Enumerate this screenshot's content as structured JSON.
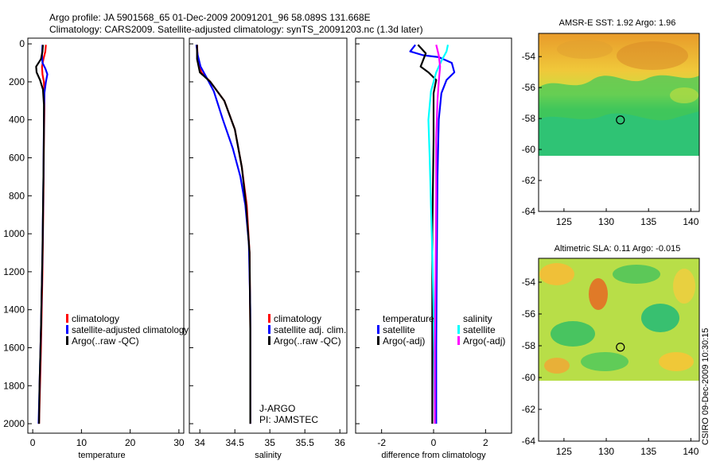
{
  "header": {
    "line1": "Argo profile: JA 5901568_65 01-Dec-2009 20091201_96 58.089S 131.668E",
    "line2": "Climatology: CARS2009. Satellite-adjusted climatology: synTS_20091203.nc  (1.3d later)"
  },
  "side_credit": "CSIRO 09-Dec-2009 10:30:15",
  "colors": {
    "climatology": "#ff0000",
    "satellite_adjusted": "#0000ff",
    "argo": "#000000",
    "sat_salinity": "#00ffff",
    "argo_salinity_adj": "#ff00ff"
  },
  "chart_data": [
    {
      "id": "temperature",
      "type": "line",
      "xlabel": "temperature",
      "xlim": [
        -1,
        31
      ],
      "ylim": [
        2050,
        -30
      ],
      "xticks": [
        0,
        10,
        20,
        30
      ],
      "yticks": [
        0,
        200,
        400,
        600,
        800,
        1000,
        1200,
        1400,
        1600,
        1800,
        2000
      ],
      "legend": [
        "climatology",
        "satellite-adjusted climatology",
        "Argo(..raw -QC)"
      ],
      "series": [
        {
          "name": "climatology",
          "color": "#ff0000",
          "points": [
            [
              2.7,
              5
            ],
            [
              2.6,
              40
            ],
            [
              2.2,
              80
            ],
            [
              1.9,
              120
            ],
            [
              2.0,
              160
            ],
            [
              2.3,
              200
            ],
            [
              2.4,
              260
            ],
            [
              2.4,
              350
            ],
            [
              2.3,
              500
            ],
            [
              2.2,
              800
            ],
            [
              2.0,
              1200
            ],
            [
              1.7,
              1600
            ],
            [
              1.3,
              2000
            ]
          ]
        },
        {
          "name": "satellite-adjusted climatology",
          "color": "#0000ff",
          "points": [
            [
              2.0,
              5
            ],
            [
              1.9,
              60
            ],
            [
              2.0,
              100
            ],
            [
              2.6,
              130
            ],
            [
              3.0,
              160
            ],
            [
              2.7,
              200
            ],
            [
              2.4,
              260
            ],
            [
              2.3,
              400
            ],
            [
              2.2,
              700
            ],
            [
              2.0,
              1100
            ],
            [
              1.7,
              1500
            ],
            [
              1.4,
              1800
            ],
            [
              1.2,
              2000
            ]
          ]
        },
        {
          "name": "Argo(..raw -QC)",
          "color": "#000000",
          "points": [
            [
              2.1,
              5
            ],
            [
              2.0,
              40
            ],
            [
              1.7,
              80
            ],
            [
              0.7,
              120
            ],
            [
              0.8,
              150
            ],
            [
              1.5,
              190
            ],
            [
              2.1,
              240
            ],
            [
              2.3,
              320
            ],
            [
              2.3,
              450
            ],
            [
              2.2,
              700
            ],
            [
              2.0,
              1100
            ],
            [
              1.7,
              1500
            ],
            [
              1.4,
              1800
            ],
            [
              1.3,
              2000
            ]
          ]
        }
      ]
    },
    {
      "id": "salinity",
      "type": "line",
      "xlabel": "salinity",
      "xlim": [
        33.85,
        36.1
      ],
      "ylim": [
        2050,
        -30
      ],
      "xticks": [
        34,
        34.5,
        35,
        35.5,
        36
      ],
      "xticklabels": [
        "34",
        "34.5",
        "35",
        "35.5",
        "36"
      ],
      "legend": [
        "climatology",
        "satellite adj. clim.",
        "Argo(..raw -QC)"
      ],
      "annotation": [
        "J-ARGO",
        "PI: JAMSTEC"
      ],
      "series": [
        {
          "name": "climatology",
          "color": "#ff0000",
          "points": [
            [
              33.96,
              5
            ],
            [
              33.97,
              80
            ],
            [
              34.02,
              150
            ],
            [
              34.15,
              200
            ],
            [
              34.35,
              300
            ],
            [
              34.5,
              450
            ],
            [
              34.6,
              650
            ],
            [
              34.67,
              850
            ],
            [
              34.71,
              1100
            ],
            [
              34.72,
              1500
            ],
            [
              34.72,
              2000
            ]
          ]
        },
        {
          "name": "satellite adj. clim.",
          "color": "#0000ff",
          "points": [
            [
              33.95,
              5
            ],
            [
              33.97,
              60
            ],
            [
              34.01,
              120
            ],
            [
              34.1,
              180
            ],
            [
              34.2,
              250
            ],
            [
              34.33,
              400
            ],
            [
              34.47,
              550
            ],
            [
              34.58,
              700
            ],
            [
              34.65,
              850
            ],
            [
              34.7,
              1050
            ],
            [
              34.72,
              1400
            ],
            [
              34.72,
              2000
            ]
          ]
        },
        {
          "name": "Argo(..raw -QC)",
          "color": "#000000",
          "points": [
            [
              33.96,
              5
            ],
            [
              33.96,
              80
            ],
            [
              34.0,
              150
            ],
            [
              34.15,
              200
            ],
            [
              34.35,
              300
            ],
            [
              34.5,
              450
            ],
            [
              34.6,
              650
            ],
            [
              34.66,
              850
            ],
            [
              34.71,
              1100
            ],
            [
              34.72,
              1500
            ],
            [
              34.72,
              2000
            ]
          ]
        }
      ]
    },
    {
      "id": "difference",
      "type": "line",
      "xlabel": "difference from climatology",
      "xlim": [
        -3,
        3
      ],
      "ylim": [
        2050,
        -30
      ],
      "xticks": [
        -2,
        0,
        2
      ],
      "legend_headers": [
        "temperature",
        "salinity"
      ],
      "legend": [
        "satellite",
        "Argo(-adj)",
        "satellite",
        "Argo(-adj)"
      ],
      "series": [
        {
          "name": "temperature satellite",
          "color": "#0000ff",
          "points": [
            [
              -0.7,
              5
            ],
            [
              -0.9,
              40
            ],
            [
              -0.4,
              60
            ],
            [
              0.2,
              70
            ],
            [
              0.7,
              100
            ],
            [
              0.8,
              150
            ],
            [
              0.5,
              190
            ],
            [
              0.3,
              260
            ],
            [
              0.2,
              400
            ],
            [
              0.15,
              700
            ],
            [
              0.12,
              1200
            ],
            [
              0.1,
              1600
            ],
            [
              0.1,
              2000
            ]
          ]
        },
        {
          "name": "temperature Argo(-adj)",
          "color": "#000000",
          "points": [
            [
              -0.6,
              5
            ],
            [
              -0.3,
              50
            ],
            [
              -0.5,
              120
            ],
            [
              -0.2,
              150
            ],
            [
              0.1,
              190
            ],
            [
              0.0,
              260
            ],
            [
              0.0,
              500
            ],
            [
              -0.05,
              1000
            ],
            [
              -0.05,
              1500
            ],
            [
              -0.05,
              2000
            ]
          ]
        },
        {
          "name": "salinity satellite",
          "color": "#00ffff",
          "points": [
            [
              0.55,
              5
            ],
            [
              0.5,
              40
            ],
            [
              0.3,
              90
            ],
            [
              0.1,
              150
            ],
            [
              -0.1,
              250
            ],
            [
              -0.2,
              400
            ],
            [
              -0.15,
              600
            ],
            [
              -0.1,
              850
            ],
            [
              -0.05,
              1100
            ],
            [
              0.0,
              1400
            ],
            [
              0.05,
              2000
            ]
          ]
        },
        {
          "name": "salinity Argo(-adj)",
          "color": "#ff00ff",
          "points": [
            [
              0.1,
              5
            ],
            [
              0.2,
              60
            ],
            [
              0.25,
              120
            ],
            [
              0.2,
              200
            ],
            [
              0.15,
              300
            ],
            [
              0.1,
              500
            ],
            [
              0.1,
              800
            ],
            [
              0.08,
              1200
            ],
            [
              0.05,
              1600
            ],
            [
              0.05,
              2000
            ]
          ]
        }
      ]
    },
    {
      "id": "sst_map",
      "type": "heatmap",
      "title": "AMSR-E SST: 1.92  Argo: 1.96",
      "xlim": [
        122,
        141
      ],
      "ylim": [
        -64,
        -52.5
      ],
      "xticks": [
        125,
        130,
        135,
        140
      ],
      "yticks": [
        -54,
        -56,
        -58,
        -60,
        -62,
        -64
      ],
      "data_lat_range": [
        -60,
        -52.5
      ],
      "marker": {
        "lon": 131.668,
        "lat": -58.089
      }
    },
    {
      "id": "sla_map",
      "type": "heatmap",
      "title": "Altimetric SLA: 0.11  Argo: -0.015",
      "xlim": [
        122,
        141
      ],
      "ylim": [
        -64,
        -52.5
      ],
      "xticks": [
        125,
        130,
        135,
        140
      ],
      "yticks": [
        -54,
        -56,
        -58,
        -60,
        -62,
        -64
      ],
      "data_lat_range": [
        -60,
        -52.5
      ],
      "marker": {
        "lon": 131.668,
        "lat": -58.089
      }
    }
  ]
}
